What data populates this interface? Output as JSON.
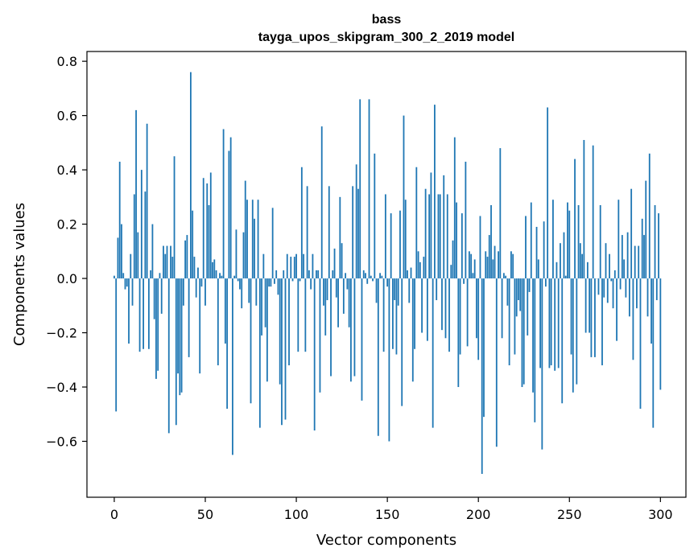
{
  "chart_data": {
    "type": "bar",
    "title": "bass",
    "subtitle": "tayga_upos_skipgram_300_2_2019 model",
    "xlabel": "Vector components",
    "ylabel": "Components values",
    "xlim": [
      -15,
      314
    ],
    "ylim": [
      -0.806,
      0.836
    ],
    "x_ticks": [
      0,
      50,
      100,
      150,
      200,
      250,
      300
    ],
    "y_ticks": [
      -0.6,
      -0.4,
      -0.2,
      0.0,
      0.2,
      0.4,
      0.6,
      0.8
    ],
    "x_tick_labels": [
      "0",
      "50",
      "100",
      "150",
      "200",
      "250",
      "300"
    ],
    "y_tick_labels": [
      "−0.6",
      "−0.4",
      "−0.2",
      "0.0",
      "0.2",
      "0.4",
      "0.6",
      "0.8"
    ],
    "grid": false,
    "bar_color": "#1f77b4",
    "values": [
      0.01,
      -0.49,
      0.15,
      0.43,
      0.2,
      0.02,
      -0.04,
      -0.03,
      -0.24,
      0.09,
      -0.1,
      0.31,
      0.62,
      0.17,
      -0.27,
      0.4,
      -0.26,
      0.32,
      0.57,
      -0.26,
      0.03,
      0.2,
      -0.15,
      -0.37,
      -0.34,
      0.02,
      -0.13,
      0.12,
      0.09,
      0.12,
      -0.57,
      0.12,
      0.08,
      0.45,
      -0.54,
      -0.35,
      -0.43,
      -0.42,
      -0.1,
      0.14,
      0.16,
      -0.29,
      0.76,
      0.25,
      0.08,
      -0.07,
      0.04,
      -0.35,
      -0.03,
      0.37,
      -0.1,
      0.35,
      0.27,
      0.39,
      0.06,
      0.07,
      0.03,
      -0.32,
      0.02,
      0.01,
      0.55,
      -0.24,
      -0.48,
      0.47,
      0.52,
      -0.65,
      0.01,
      0.18,
      -0.01,
      -0.04,
      -0.11,
      0.17,
      0.36,
      0.29,
      -0.09,
      -0.46,
      0.29,
      0.22,
      -0.1,
      0.29,
      -0.55,
      -0.21,
      0.09,
      -0.18,
      -0.38,
      -0.03,
      -0.03,
      0.26,
      -0.02,
      0.03,
      -0.06,
      -0.39,
      -0.54,
      0.03,
      -0.52,
      0.09,
      -0.32,
      0.08,
      -0.01,
      0.08,
      0.09,
      -0.27,
      -0.01,
      0.41,
      0.09,
      -0.27,
      0.34,
      0.03,
      -0.04,
      0.09,
      -0.56,
      0.03,
      0.03,
      -0.42,
      0.56,
      -0.1,
      -0.21,
      -0.08,
      0.34,
      -0.36,
      0.03,
      0.11,
      -0.07,
      -0.18,
      0.3,
      0.13,
      -0.13,
      0.02,
      -0.04,
      -0.18,
      -0.38,
      0.34,
      -0.36,
      0.42,
      0.33,
      0.66,
      -0.45,
      0.03,
      0.02,
      -0.02,
      0.66,
      0.01,
      -0.01,
      0.46,
      -0.09,
      -0.58,
      0.02,
      0.01,
      -0.27,
      0.31,
      -0.03,
      -0.6,
      0.24,
      -0.26,
      -0.08,
      -0.28,
      -0.1,
      0.25,
      -0.47,
      0.6,
      0.29,
      0.03,
      -0.09,
      0.04,
      -0.38,
      -0.26,
      0.41,
      0.1,
      0.06,
      -0.2,
      0.08,
      0.33,
      -0.23,
      0.31,
      0.39,
      -0.55,
      0.64,
      -0.08,
      0.31,
      0.31,
      -0.19,
      0.38,
      -0.22,
      0.31,
      -0.27,
      0.05,
      0.14,
      0.52,
      0.28,
      -0.4,
      -0.28,
      0.24,
      -0.02,
      0.43,
      -0.25,
      0.1,
      0.09,
      0.02,
      0.07,
      -0.22,
      -0.3,
      0.23,
      -0.72,
      -0.51,
      0.1,
      0.08,
      0.16,
      0.27,
      0.07,
      0.12,
      -0.62,
      0.1,
      0.48,
      -0.22,
      0.02,
      0.01,
      -0.1,
      -0.32,
      0.1,
      0.09,
      -0.28,
      -0.14,
      -0.08,
      -0.12,
      -0.4,
      -0.39,
      0.23,
      -0.21,
      -0.05,
      0.28,
      -0.42,
      -0.53,
      0.19,
      0.07,
      -0.33,
      -0.63,
      0.21,
      -0.03,
      0.63,
      -0.33,
      -0.32,
      0.29,
      -0.34,
      0.06,
      -0.33,
      0.13,
      -0.46,
      0.17,
      0.01,
      0.28,
      0.25,
      -0.28,
      -0.42,
      0.44,
      -0.39,
      0.27,
      0.13,
      0.09,
      0.51,
      -0.2,
      0.06,
      -0.2,
      -0.29,
      0.49,
      -0.29,
      0.0,
      -0.06,
      0.27,
      -0.32,
      -0.07,
      0.13,
      -0.09,
      0.09,
      -0.01,
      -0.11,
      0.03,
      -0.23,
      0.29,
      -0.04,
      0.16,
      0.07,
      -0.07,
      0.17,
      -0.14,
      0.33,
      -0.3,
      0.12,
      -0.11,
      0.12,
      -0.48,
      0.22,
      0.16,
      0.36,
      -0.14,
      0.46,
      -0.24,
      -0.55,
      0.27,
      -0.08,
      0.24,
      -0.41
    ]
  }
}
